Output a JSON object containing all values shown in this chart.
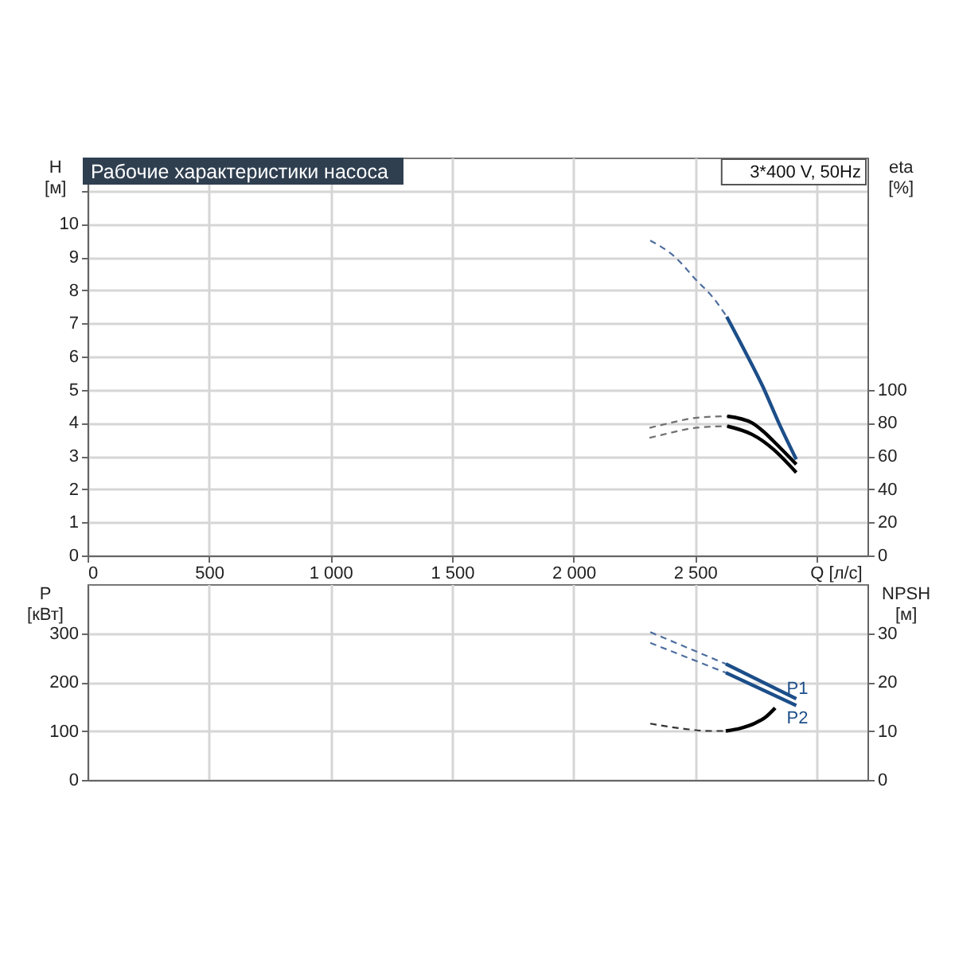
{
  "chart_data": [
    {
      "type": "line",
      "title": "Рабочие характеристики насоса",
      "subtitle": "3*400 V, 50Hz",
      "xlabel": "Q [л/с]",
      "ylabel": "H\n[м]",
      "y2label": "eta\n[%]",
      "xlim": [
        0,
        3210
      ],
      "xticks": [
        0,
        500,
        {
          "value": 1000,
          "label": "1 000"
        },
        {
          "value": 1500,
          "label": "1 500"
        },
        {
          "value": 2000,
          "label": "2 000"
        },
        {
          "value": 2500,
          "label": "2 500"
        },
        {
          "value": 3000,
          "label": null
        }
      ],
      "ylim": [
        0,
        12
      ],
      "yticks": [
        0,
        1,
        2,
        3,
        4,
        5,
        6,
        7,
        8,
        9,
        10,
        {
          "value": 11,
          "label": null
        }
      ],
      "y2lim": [
        0,
        240
      ],
      "y2ticks": [
        0,
        20,
        40,
        60,
        80,
        100
      ],
      "grid": true,
      "series": [
        {
          "color": "#4f6f9f",
          "line_style": "dashed",
          "x": [
            2316,
            2418,
            2506,
            2572,
            2631
          ],
          "values": [
            9.5,
            9.0,
            8.3,
            7.8,
            7.2
          ]
        },
        {
          "color": "#1c4e89",
          "line_style": "solid",
          "x": [
            2631,
            2703,
            2779,
            2845,
            2917
          ],
          "values": [
            7.2,
            6.2,
            5.1,
            4.0,
            2.9
          ]
        },
        {
          "color": "#707070",
          "line_style": "dashed",
          "axis": "y2",
          "x": [
            2313,
            2400,
            2500,
            2633
          ],
          "values": [
            77,
            80,
            83,
            84
          ]
        },
        {
          "color": "#000000",
          "line_style": "solid",
          "axis": "y2",
          "x": [
            2633,
            2735,
            2780,
            2823,
            2917
          ],
          "values": [
            84,
            80,
            75,
            69,
            55
          ]
        },
        {
          "color": "#707070",
          "line_style": "dashed",
          "axis": "y2",
          "x": [
            2313,
            2400,
            2500,
            2633
          ],
          "values": [
            71,
            74,
            77,
            78
          ]
        },
        {
          "color": "#000000",
          "line_style": "solid",
          "axis": "y2",
          "x": [
            2633,
            2735,
            2780,
            2823,
            2917
          ],
          "values": [
            78,
            73,
            69,
            64,
            50
          ]
        }
      ]
    },
    {
      "type": "line",
      "ylabel": "P\n[кВт]",
      "y2label": "NPSH\n[м]",
      "tick_labels": "y",
      "xlim": [
        0,
        3210
      ],
      "xticks": [
        0,
        500,
        1000,
        1500,
        2000,
        2500,
        3000
      ],
      "ylim": [
        0,
        400
      ],
      "yticks": [
        0,
        100,
        200,
        300
      ],
      "y2lim": [
        0,
        40
      ],
      "y2ticks": [
        0,
        10,
        20,
        30
      ],
      "grid": true,
      "series": [
        {
          "color": "#4f6f9f",
          "line_style": "dashed",
          "x": [
            2316,
            2627
          ],
          "values": [
            302,
            237
          ]
        },
        {
          "name": "P1",
          "color": "#1c4e89",
          "line_style": "solid",
          "x": [
            2627,
            2917
          ],
          "values": [
            237,
            166
          ]
        },
        {
          "color": "#4f6f9f",
          "line_style": "dashed",
          "x": [
            2316,
            2627
          ],
          "values": [
            280,
            219
          ]
        },
        {
          "name": "P2",
          "color": "#1c4e89",
          "line_style": "solid",
          "x": [
            2627,
            2917
          ],
          "values": [
            219,
            152
          ]
        },
        {
          "color": "#333333",
          "line_style": "dashed",
          "axis": "y2",
          "x": [
            2316,
            2462,
            2562,
            2627
          ],
          "values": [
            11.5,
            10.4,
            10.0,
            10.0
          ]
        },
        {
          "color": "#000000",
          "line_style": "solid",
          "axis": "y2",
          "x": [
            2627,
            2690,
            2747,
            2790,
            2830
          ],
          "values": [
            10.0,
            10.6,
            11.6,
            12.8,
            14.7
          ]
        }
      ]
    }
  ]
}
